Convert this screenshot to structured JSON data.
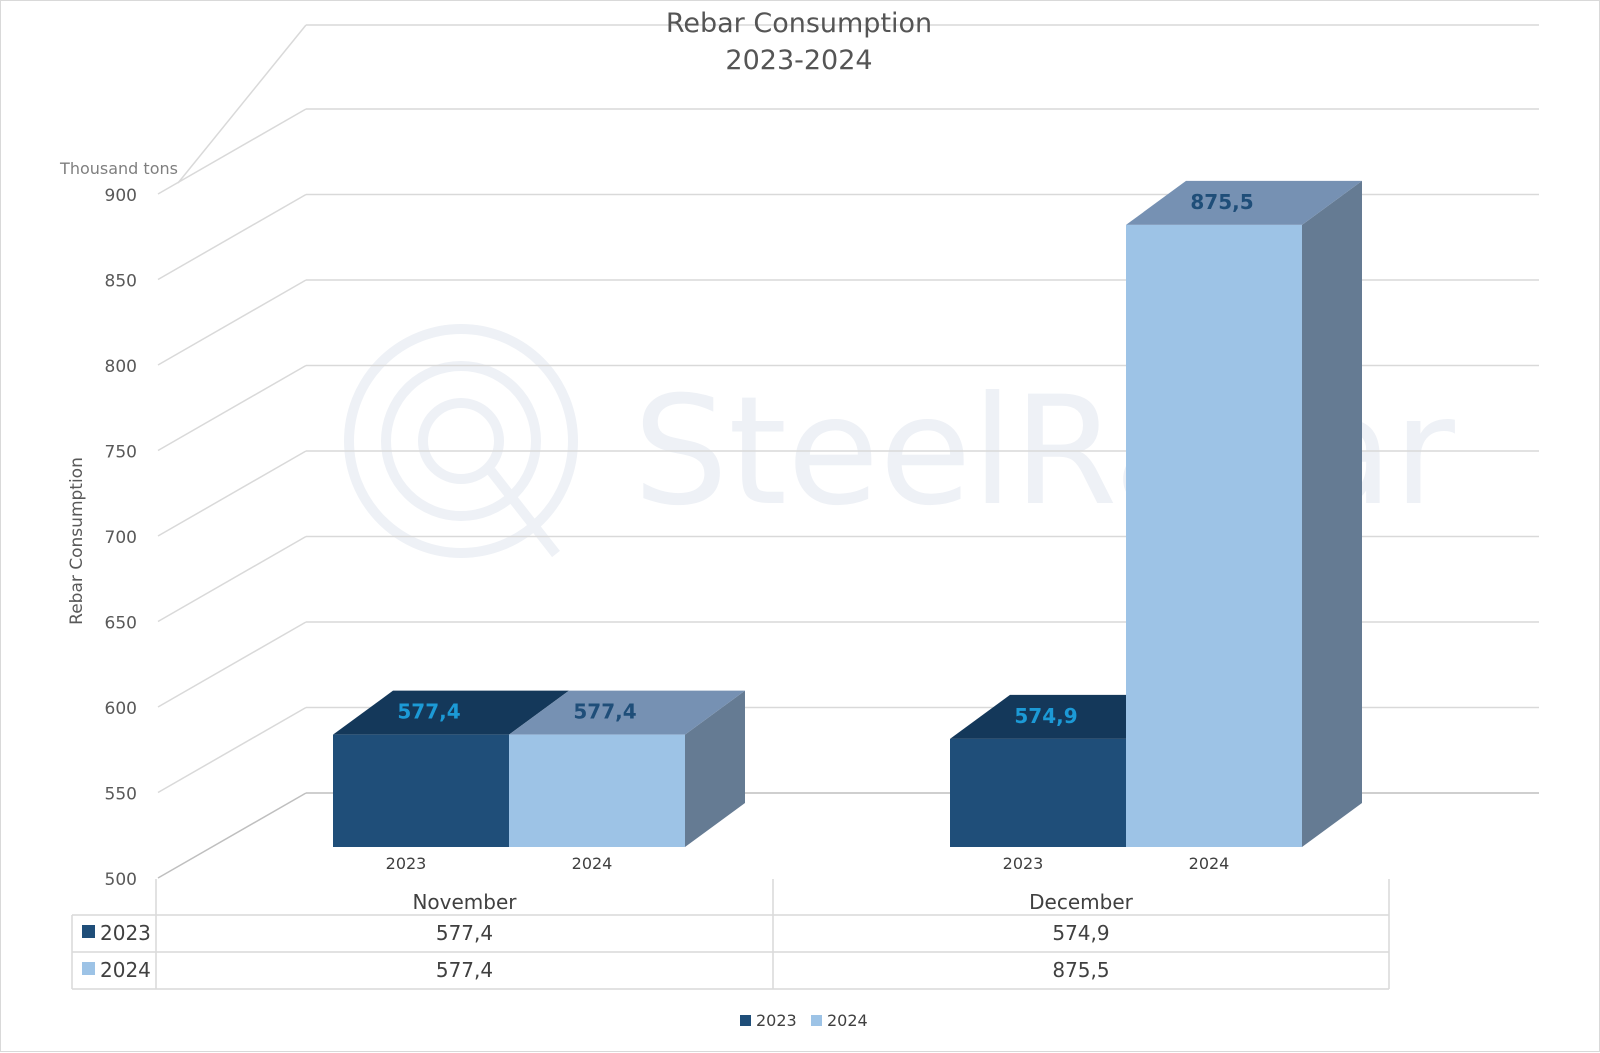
{
  "chart_data": {
    "type": "bar",
    "title_line1": "Rebar Consumption",
    "title_line2": "2023-2024",
    "ylabel": "Rebar Consumption",
    "unit_label": "Thousand tons",
    "ylim": [
      500,
      900
    ],
    "yticks": [
      "500",
      "550",
      "600",
      "650",
      "700",
      "750",
      "800",
      "850",
      "900"
    ],
    "categories": [
      "November",
      "December"
    ],
    "series": [
      {
        "name": "2023",
        "values": [
          577.4,
          574.9
        ],
        "labels": [
          "577,4",
          "574,9"
        ],
        "color": "#1f4e79"
      },
      {
        "name": "2024",
        "values": [
          577.4,
          875.5
        ],
        "labels": [
          "577,4",
          "875,5"
        ],
        "color": "#9dc3e6"
      }
    ],
    "legend_position": "bottom",
    "grid": true,
    "data_table": true
  },
  "watermark": {
    "text": "SteelRadar"
  },
  "colors": {
    "bar_2023_front": "#1f4e79",
    "bar_2023_top": "#14385a",
    "bar_2024_front": "#9dc3e6",
    "bar_2024_top": "#7691b3",
    "bar_2024_side": "#657b93",
    "label_2023": "#1c9ad6",
    "label_2024": "#1f4e79"
  }
}
